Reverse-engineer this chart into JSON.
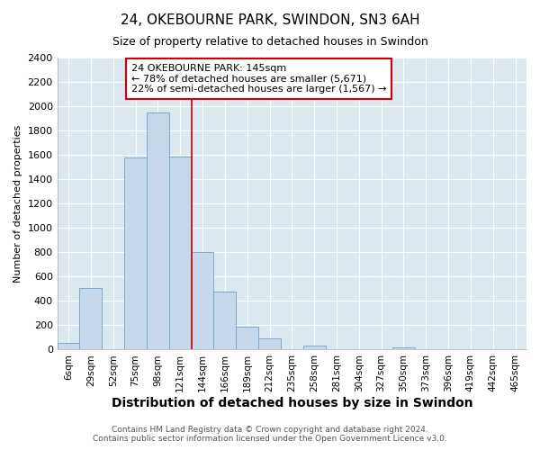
{
  "title": "24, OKEBOURNE PARK, SWINDON, SN3 6AH",
  "subtitle": "Size of property relative to detached houses in Swindon",
  "xlabel": "Distribution of detached houses by size in Swindon",
  "ylabel": "Number of detached properties",
  "bin_labels": [
    "6sqm",
    "29sqm",
    "52sqm",
    "75sqm",
    "98sqm",
    "121sqm",
    "144sqm",
    "166sqm",
    "189sqm",
    "212sqm",
    "235sqm",
    "258sqm",
    "281sqm",
    "304sqm",
    "327sqm",
    "350sqm",
    "373sqm",
    "396sqm",
    "419sqm",
    "442sqm",
    "465sqm"
  ],
  "bar_heights": [
    55,
    505,
    0,
    1580,
    1950,
    1590,
    800,
    475,
    185,
    90,
    0,
    30,
    0,
    0,
    0,
    20,
    0,
    0,
    0,
    0,
    0
  ],
  "bar_color": "#c8d8eb",
  "bar_edge_color": "#7aaace",
  "vline_color": "#cc0000",
  "vline_x_index": 6,
  "annotation_text": "24 OKEBOURNE PARK: 145sqm\n← 78% of detached houses are smaller (5,671)\n22% of semi-detached houses are larger (1,567) →",
  "annotation_box_facecolor": "#ffffff",
  "annotation_box_edgecolor": "#cc0000",
  "ylim": [
    0,
    2400
  ],
  "yticks": [
    0,
    200,
    400,
    600,
    800,
    1000,
    1200,
    1400,
    1600,
    1800,
    2000,
    2200,
    2400
  ],
  "footer_line1": "Contains HM Land Registry data © Crown copyright and database right 2024.",
  "footer_line2": "Contains public sector information licensed under the Open Government Licence v3.0.",
  "fig_bg_color": "#ffffff",
  "plot_bg_color": "#dce8f0",
  "grid_color": "#ffffff",
  "title_fontsize": 11,
  "subtitle_fontsize": 9,
  "xlabel_fontsize": 10,
  "ylabel_fontsize": 8,
  "ytick_fontsize": 8,
  "xtick_fontsize": 7.5,
  "footer_fontsize": 6.5,
  "annotation_fontsize": 8
}
